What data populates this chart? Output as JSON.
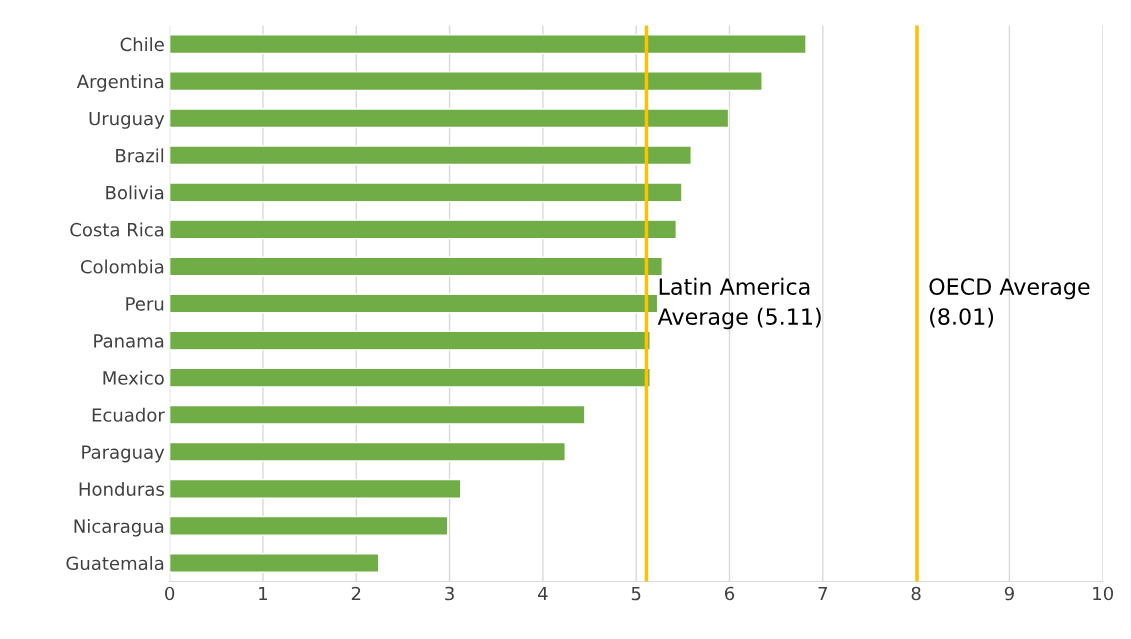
{
  "chart_data": {
    "type": "bar",
    "orientation": "horizontal",
    "categories": [
      "Chile",
      "Argentina",
      "Uruguay",
      "Brazil",
      "Bolivia",
      "Costa Rica",
      "Colombia",
      "Peru",
      "Panama",
      "Mexico",
      "Ecuador",
      "Paraguay",
      "Honduras",
      "Nicaragua",
      "Guatemala"
    ],
    "values": [
      6.82,
      6.35,
      5.99,
      5.59,
      5.49,
      5.43,
      5.28,
      5.23,
      5.15,
      5.15,
      4.45,
      4.24,
      3.12,
      2.98,
      2.24
    ],
    "color": "#70ad47",
    "xlim": [
      0,
      10
    ],
    "xticks": [
      0,
      1,
      2,
      3,
      4,
      5,
      6,
      7,
      8,
      9,
      10
    ],
    "grid": "x",
    "ref_lines": [
      {
        "axis": "x",
        "value": 5.11,
        "label": "Latin America\nAverage (5.11)",
        "color": "#ffc000"
      },
      {
        "axis": "x",
        "value": 8.01,
        "label": "OECD Average\n(8.01)",
        "color": "#ffc000"
      }
    ]
  }
}
